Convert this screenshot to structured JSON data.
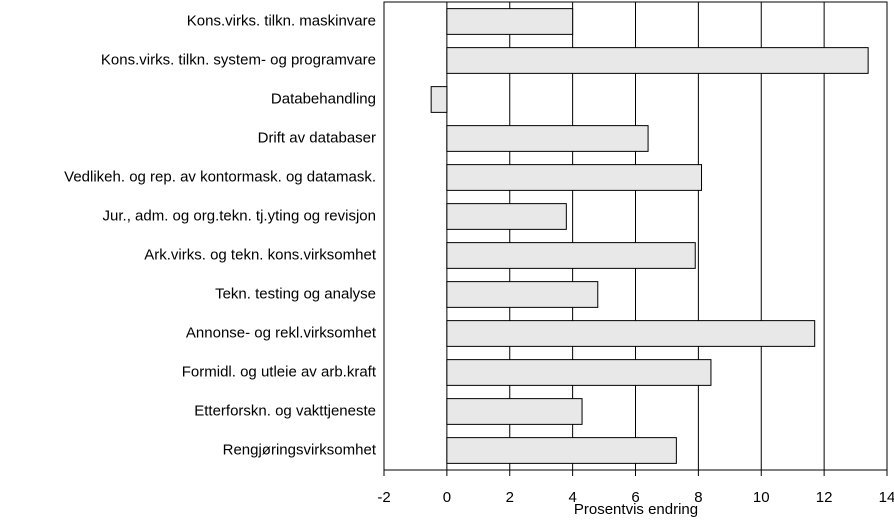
{
  "chart_data": {
    "type": "barh",
    "x_label": "Prosentvis endring",
    "categories": [
      "Kons.virks. tilkn. maskinvare",
      "Kons.virks. tilkn. system- og programvare",
      "Databehandling",
      "Drift av databaser",
      "Vedlikeh. og rep. av kontormask. og datamask.",
      "Jur., adm. og org.tekn. tj.yting og revisjon",
      "Ark.virks. og tekn. kons.virksomhet",
      "Tekn. testing og analyse",
      "Annonse- og rekl.virksomhet",
      "Formidl. og utleie av arb.kraft",
      "Etterforskn. og vakttjeneste",
      "Rengjøringsvirksomhet"
    ],
    "values": [
      4.0,
      13.4,
      -0.5,
      6.4,
      8.1,
      3.8,
      7.9,
      4.8,
      11.7,
      8.4,
      4.3,
      7.3
    ],
    "color": "#e8e8e8",
    "xlim": [
      -2,
      14
    ],
    "xticks": [
      -2,
      0,
      2,
      4,
      6,
      8,
      10,
      12,
      14
    ],
    "grid": true
  }
}
